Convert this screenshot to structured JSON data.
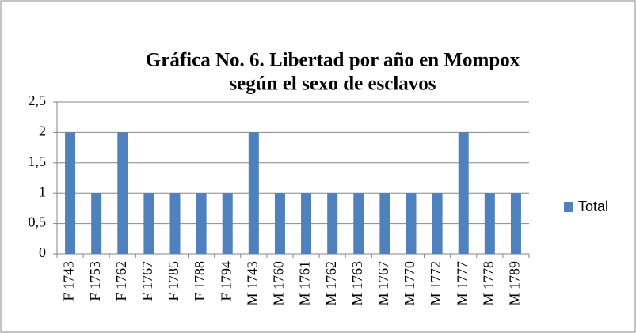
{
  "chart_data": {
    "type": "bar",
    "title": [
      "Gráfica No. 6. Libertad por año en Mompox",
      "según el sexo de esclavos"
    ],
    "categories": [
      "F 1743",
      "F 1753",
      "F 1762",
      "F 1767",
      "F 1785",
      "F 1788",
      "F 1794",
      "M 1743",
      "M 1760",
      "M 1761",
      "M 1762",
      "M 1763",
      "M 1767",
      "M 1770",
      "M 1772",
      "M 1777",
      "M 1778",
      "M 1789"
    ],
    "series": [
      {
        "name": "Total",
        "color": "#4f81bd",
        "values": [
          2,
          1,
          2,
          1,
          1,
          1,
          1,
          2,
          1,
          1,
          1,
          1,
          1,
          1,
          1,
          2,
          1,
          1
        ]
      }
    ],
    "ylim": [
      0,
      2.5
    ],
    "yticks": [
      0,
      {
        "value": 0.5,
        "label": "0,5"
      },
      1,
      {
        "value": 1.5,
        "label": "1,5"
      },
      2,
      {
        "value": 2.5,
        "label": "2,5"
      }
    ],
    "grid": true,
    "legend": "right"
  }
}
